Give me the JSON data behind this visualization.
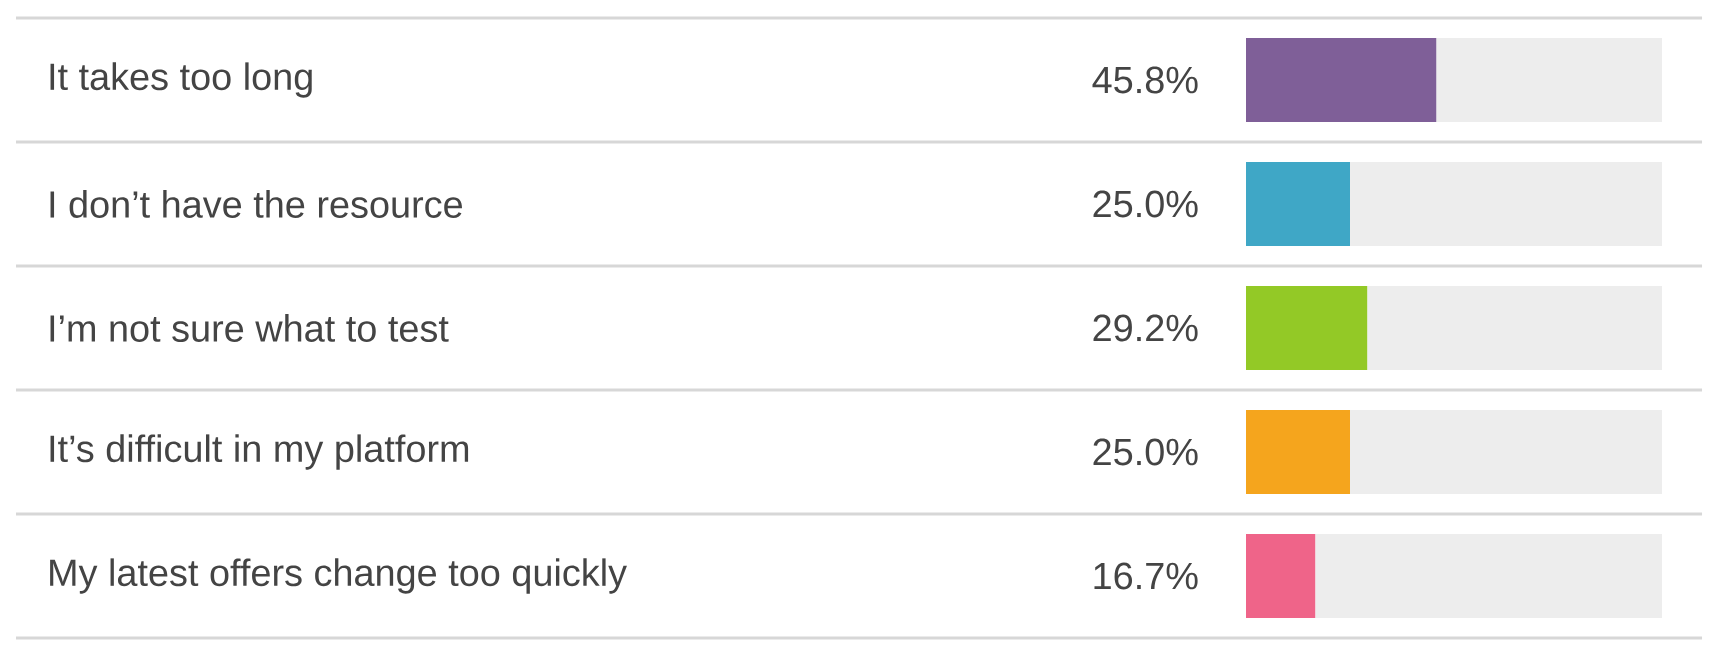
{
  "chart_data": {
    "type": "bar",
    "orientation": "horizontal",
    "stacked": true,
    "categories": [
      "It takes too long",
      "I don’t have the resource",
      "I’m not sure what to test",
      "It’s difficult in my platform",
      "My latest offers change too quickly"
    ],
    "xlim": [
      0,
      100
    ],
    "series": [
      {
        "colors": [
          "#7f5f98",
          "#3fa7c6",
          "#93c926",
          "#f5a51d",
          "#ef6489"
        ],
        "values": [
          45.8,
          25.0,
          29.2,
          25.0,
          16.7
        ],
        "value_labels": [
          "45.8%",
          "25.0%",
          "29.2%",
          "25.0%",
          "16.7%"
        ]
      },
      {
        "color": "#ededed",
        "values": [
          54.2,
          75.0,
          70.8,
          75.0,
          83.3
        ]
      }
    ]
  }
}
